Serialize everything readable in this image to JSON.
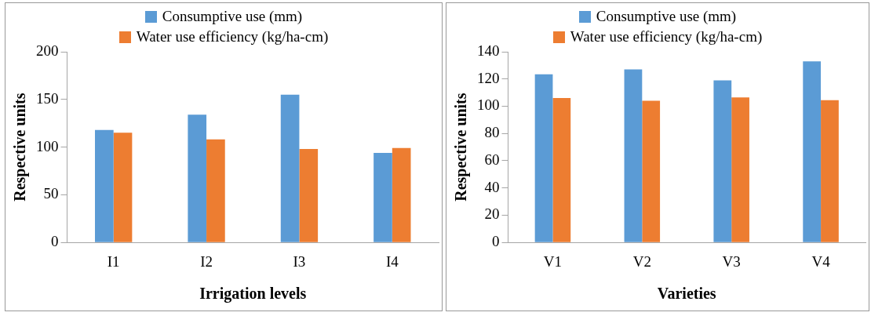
{
  "chart_data": [
    {
      "type": "bar",
      "xlabel": "Irrigation levels",
      "ylabel": "Respective units",
      "categories": [
        "I1",
        "I2",
        "I3",
        "I4"
      ],
      "series": [
        {
          "name": "Consumptive use (mm)",
          "color": "#5b9bd5",
          "values": [
            118,
            134,
            155,
            94
          ]
        },
        {
          "name": "Water use efficiency (kg/ha-cm)",
          "color": "#ed7d31",
          "values": [
            115,
            108,
            98,
            99
          ]
        }
      ],
      "ylim": [
        0,
        200
      ],
      "yticks": [
        0,
        50,
        100,
        150,
        200
      ],
      "grid": false,
      "legend": "top"
    },
    {
      "type": "bar",
      "xlabel": "Varieties",
      "ylabel": "Respective units",
      "categories": [
        "V1",
        "V2",
        "V3",
        "V4"
      ],
      "series": [
        {
          "name": "Consumptive use (mm)",
          "color": "#5b9bd5",
          "values": [
            123.5,
            127,
            119,
            133
          ]
        },
        {
          "name": "Water use efficiency (kg/ha-cm)",
          "color": "#ed7d31",
          "values": [
            106,
            104,
            106.5,
            104.5
          ]
        }
      ],
      "ylim": [
        0,
        140
      ],
      "yticks": [
        0,
        20,
        40,
        60,
        80,
        100,
        120,
        140
      ],
      "grid": false,
      "legend": "top"
    }
  ]
}
